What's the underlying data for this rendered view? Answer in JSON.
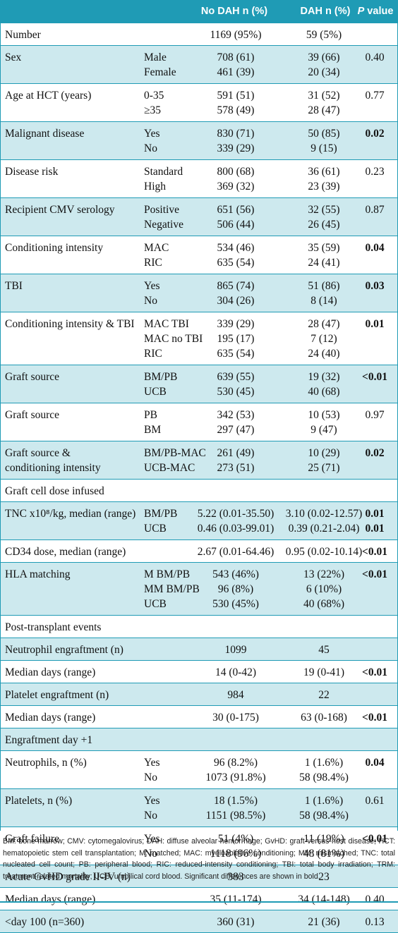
{
  "header": {
    "col_a": "No DAH n (%)",
    "col_b": "DAH n (%)",
    "col_p_italic": "P",
    "col_p_rest": " value"
  },
  "rows": [
    {
      "label": "Number",
      "lines": [
        {
          "sub": "",
          "a": "1169 (95%)",
          "b": "59 (5%)"
        }
      ],
      "p": "",
      "bold": false,
      "shade": false
    },
    {
      "label": "Sex",
      "lines": [
        {
          "sub": "Male",
          "a": "708 (61)",
          "b": "39 (66)"
        },
        {
          "sub": "Female",
          "a": "461 (39)",
          "b": "20 (34)"
        }
      ],
      "p": "0.40",
      "bold": false,
      "shade": true
    },
    {
      "label": "Age at HCT (years)",
      "lines": [
        {
          "sub": "0-35",
          "a": "591 (51)",
          "b": "31 (52)"
        },
        {
          "sub": "≥35",
          "a": "578 (49)",
          "b": "28 (47)"
        }
      ],
      "p": "0.77",
      "bold": false,
      "shade": false
    },
    {
      "label": "Malignant disease",
      "lines": [
        {
          "sub": "Yes",
          "a": "830 (71)",
          "b": "50 (85)"
        },
        {
          "sub": "No",
          "a": "339 (29)",
          "b": "9   (15)"
        }
      ],
      "p": "0.02",
      "bold": true,
      "shade": true
    },
    {
      "label": "Disease risk",
      "lines": [
        {
          "sub": "Standard",
          "a": "800 (68)",
          "b": "36 (61)"
        },
        {
          "sub": "High",
          "a": "369 (32)",
          "b": "23 (39)"
        }
      ],
      "p": "0.23",
      "bold": false,
      "shade": false
    },
    {
      "label": "Recipient CMV serology",
      "lines": [
        {
          "sub": "Positive",
          "a": "651 (56)",
          "b": "32 (55)"
        },
        {
          "sub": "Negative",
          "a": "506 (44)",
          "b": "26 (45)"
        }
      ],
      "p": "0.87",
      "bold": false,
      "shade": true
    },
    {
      "label": "Conditioning intensity",
      "lines": [
        {
          "sub": "MAC",
          "a": "534 (46)",
          "b": "35 (59)"
        },
        {
          "sub": "RIC",
          "a": "635 (54)",
          "b": "24 (41)"
        }
      ],
      "p": "0.04",
      "bold": true,
      "shade": false
    },
    {
      "label": "TBI",
      "lines": [
        {
          "sub": "Yes",
          "a": "865 (74)",
          "b": "51 (86)"
        },
        {
          "sub": "No",
          "a": "304 (26)",
          "b": "8   (14)"
        }
      ],
      "p": "0.03",
      "bold": true,
      "shade": true
    },
    {
      "label": "Conditioning intensity & TBI",
      "lines": [
        {
          "sub": "MAC TBI",
          "a": "339 (29)",
          "b": "28 (47)"
        },
        {
          "sub": "MAC no TBI",
          "a": "195 (17)",
          "b": "7 (12)"
        },
        {
          "sub": "RIC",
          "a": "635 (54)",
          "b": "24 (40)"
        }
      ],
      "p": "0.01",
      "bold": true,
      "shade": false
    },
    {
      "label": "Graft source",
      "lines": [
        {
          "sub": "BM/PB",
          "a": "639 (55)",
          "b": "19 (32)"
        },
        {
          "sub": "UCB",
          "a": "530 (45)",
          "b": "40 (68)"
        }
      ],
      "p": "<0.01",
      "bold": true,
      "shade": true
    },
    {
      "label": "Graft source",
      "lines": [
        {
          "sub": "PB",
          "a": "342 (53)",
          "b": "10 (53)"
        },
        {
          "sub": "BM",
          "a": "297 (47)",
          "b": "9   (47)"
        }
      ],
      "p": "0.97",
      "bold": false,
      "shade": false
    },
    {
      "label": "Graft source &",
      "label2": "conditioning intensity",
      "lines": [
        {
          "sub": "BM/PB-MAC",
          "a": "261 (49)",
          "b": "10 (29)"
        },
        {
          "sub": "UCB-MAC",
          "a": "273 (51)",
          "b": "25 (71)"
        }
      ],
      "p": "0.02",
      "bold": true,
      "shade": true
    },
    {
      "label": "Graft cell dose infused",
      "lines": [
        {
          "sub": "",
          "a": "",
          "b": ""
        }
      ],
      "p": "",
      "bold": false,
      "shade": false
    },
    {
      "label": "TNC x10⁸/kg, median (range)",
      "lines": [
        {
          "sub": "BM/PB",
          "a": "5.22 (0.01-35.50)",
          "b": "3.10 (0.02-12.57)",
          "p": "0.01"
        },
        {
          "sub": "UCB",
          "a": "0.46 (0.03-99.01)",
          "b": "0.39 (0.21-2.04)",
          "p": "0.01"
        }
      ],
      "p": "",
      "bold": true,
      "shade": true
    },
    {
      "label": "CD34 dose, median (range)",
      "lines": [
        {
          "sub": "",
          "a": "2.67 (0.01-64.46)",
          "b": "0.95 (0.02-10.14)"
        }
      ],
      "p": "<0.01",
      "bold": true,
      "shade": false
    },
    {
      "label": "HLA matching",
      "lines": [
        {
          "sub": "M BM/PB",
          "a": "543 (46%)",
          "b": "13 (22%)"
        },
        {
          "sub": "MM BM/PB",
          "a": "96 (8%)",
          "b": "6 (10%)"
        },
        {
          "sub": "UCB",
          "a": "530 (45%)",
          "b": "40 (68%)"
        }
      ],
      "p": "<0.01",
      "bold": true,
      "shade": true
    },
    {
      "label": "Post-transplant events",
      "lines": [
        {
          "sub": "",
          "a": "",
          "b": ""
        }
      ],
      "p": "",
      "bold": false,
      "shade": false
    },
    {
      "label": "Neutrophil engraftment (n)",
      "lines": [
        {
          "sub": "",
          "a": "1099",
          "b": "45"
        }
      ],
      "p": "",
      "bold": false,
      "shade": true
    },
    {
      "label": "Median days (range)",
      "lines": [
        {
          "sub": "",
          "a": "14 (0-42)",
          "b": "19 (0-41)"
        }
      ],
      "p": "<0.01",
      "bold": true,
      "shade": false
    },
    {
      "label": "Platelet engraftment (n)",
      "lines": [
        {
          "sub": "",
          "a": "984",
          "b": "22"
        }
      ],
      "p": "",
      "bold": false,
      "shade": true
    },
    {
      "label": "Median days (range)",
      "lines": [
        {
          "sub": "",
          "a": "30 (0-175)",
          "b": "63 (0-168)"
        }
      ],
      "p": "<0.01",
      "bold": true,
      "shade": false
    },
    {
      "label": "Engraftment day +1",
      "lines": [
        {
          "sub": "",
          "a": "",
          "b": ""
        }
      ],
      "p": "",
      "bold": false,
      "shade": true
    },
    {
      "label": "Neutrophils, n (%)",
      "lines": [
        {
          "sub": "Yes",
          "a": "96 (8.2%)",
          "b": "1 (1.6%)"
        },
        {
          "sub": "No",
          "a": "1073 (91.8%)",
          "b": "58 (98.4%)"
        }
      ],
      "p": "0.04",
      "bold": true,
      "shade": false
    },
    {
      "label": "Platelets, n (%)",
      "lines": [
        {
          "sub": "Yes",
          "a": "18 (1.5%)",
          "b": "1 (1.6%)"
        },
        {
          "sub": "No",
          "a": "1151 (98.5%)",
          "b": "58 (98.4%)"
        }
      ],
      "p": "0.61",
      "bold": false,
      "shade": true
    },
    {
      "label": "Graft failure",
      "lines": [
        {
          "sub": "Yes",
          "a": "51 (4%)",
          "b": "11 (19%)"
        },
        {
          "sub": "No",
          "a": "1118 (96%)",
          "b": "48 (81%)"
        }
      ],
      "p": "<0.01",
      "bold": true,
      "shade": false
    },
    {
      "label": "Acute GvHD grade II-IV (n)",
      "lines": [
        {
          "sub": "",
          "a": "383",
          "b": "23"
        }
      ],
      "p": "",
      "bold": false,
      "shade": true
    },
    {
      "label": "Median days (range)",
      "lines": [
        {
          "sub": "",
          "a": "35 (11-174)",
          "b": "34 (14-148)"
        }
      ],
      "p": "0.40",
      "bold": false,
      "shade": false
    },
    {
      "label": "<day 100 (n=360)",
      "lines": [
        {
          "sub": "",
          "a": "360 (31)",
          "b": "21 (36)"
        }
      ],
      "p": "0.13",
      "bold": false,
      "shade": true
    }
  ],
  "footnote": "BM: bone marrow; CMV: cytomegalovirus; DAH: diffuse alveolar hemorrhage; GvHD: graft-versus-host disease; HCT: hematopoietic stem cell transplantation; M: matched; MAC: myeloablative conditioning; MM: mismatched; TNC: total nucleated cell count; PB: peripheral blood; RIC: reduced-intensity conditioning; TBI: total body irradiation; TRM: treatment-related mortality; UCB: umbilical cord blood. Significant differences are shown in bold."
}
